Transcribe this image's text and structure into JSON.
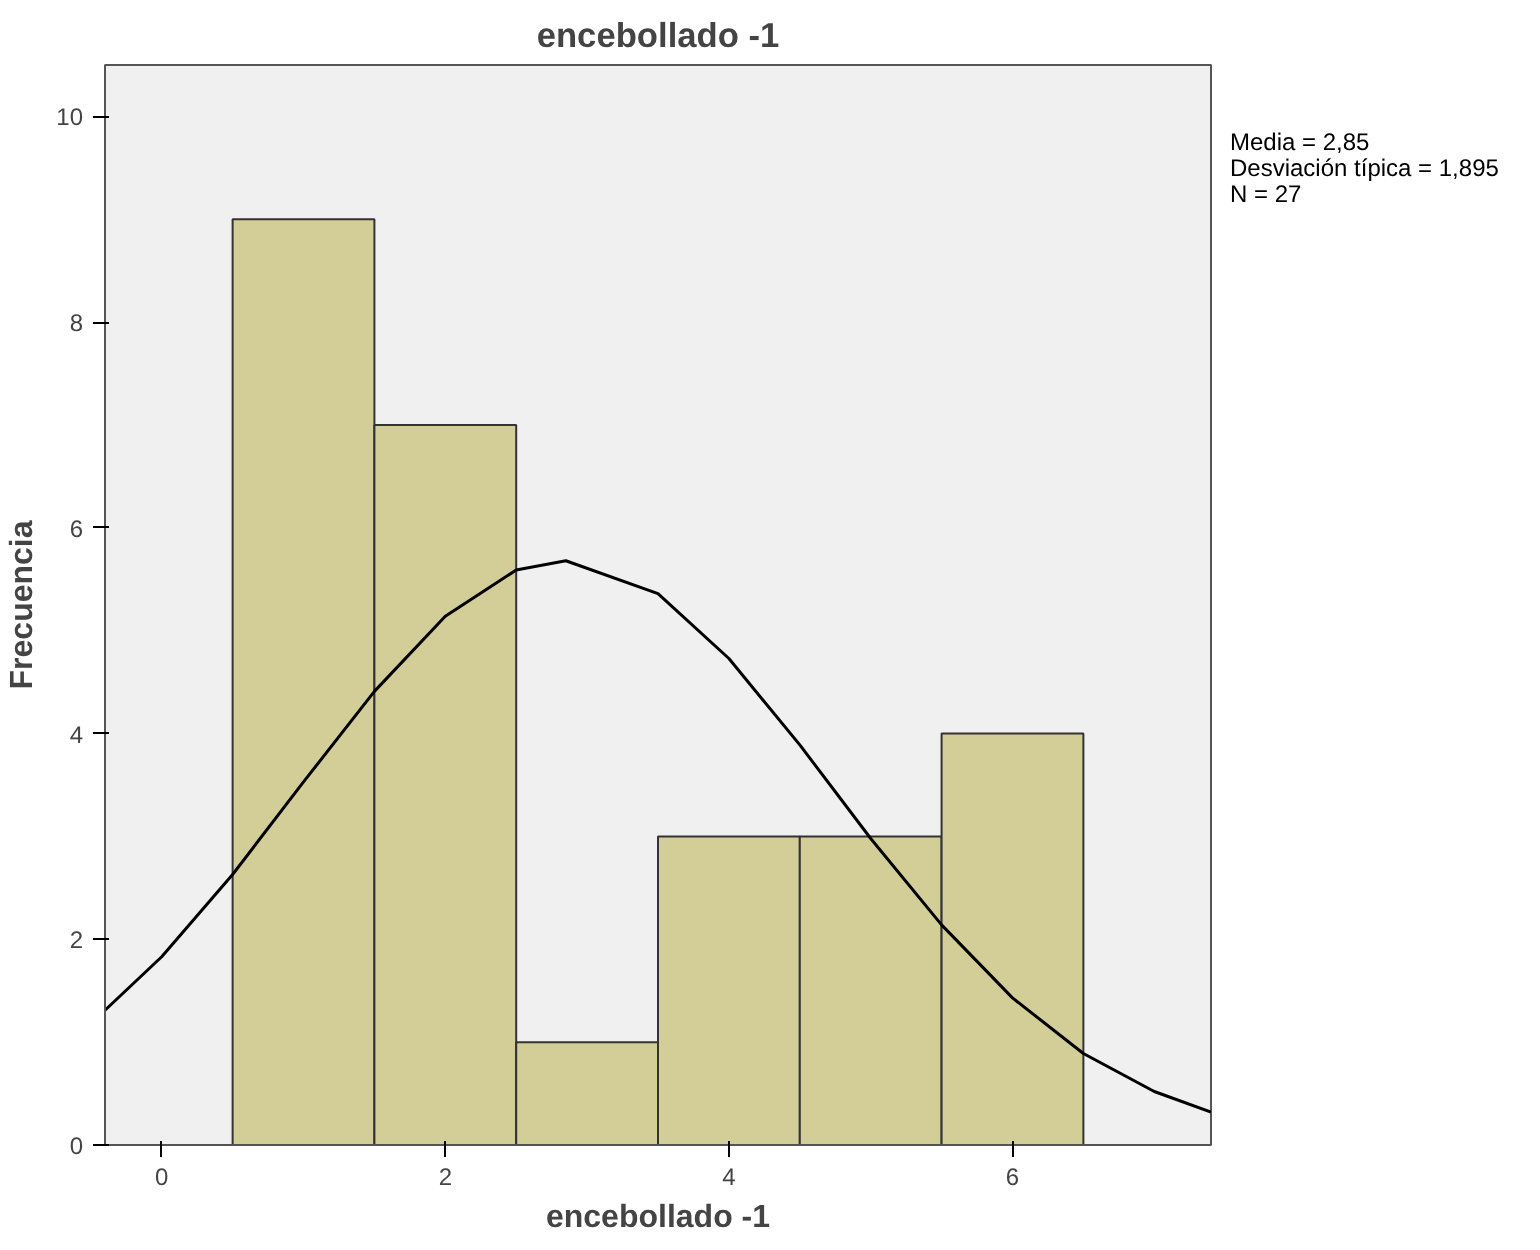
{
  "chart_data": {
    "type": "histogram",
    "title": "encebollado -1",
    "xlabel": "encebollado -1",
    "ylabel": "Frecuencia",
    "bins": [
      0.5,
      1.5,
      2.5,
      3.5,
      4.5,
      5.5,
      6.5
    ],
    "values": [
      9,
      7,
      1,
      3,
      3,
      4
    ],
    "color": "#d3ce97",
    "series": [
      {
        "type": "line",
        "color": "#000000",
        "x": [
          -0.4,
          0,
          0.5,
          1,
          1.5,
          2,
          2.5,
          2.85,
          3.5,
          4,
          4.5,
          5,
          5.5,
          6,
          6.5,
          7,
          7.4
        ],
        "values": [
          1.31,
          1.83,
          2.63,
          3.53,
          4.41,
          5.14,
          5.59,
          5.68,
          5.36,
          4.73,
          3.89,
          2.98,
          2.14,
          1.43,
          0.89,
          0.52,
          0.32
        ]
      }
    ],
    "xlim": [
      -0.4,
      7.4
    ],
    "ylim": [
      0,
      10.5
    ],
    "xticks": [
      0,
      2,
      4,
      6
    ],
    "yticks": [
      0,
      2,
      4,
      6,
      8,
      10
    ],
    "grid": false,
    "annotations": [
      "Media = 2,85",
      "Desviación típica = 1,895",
      "N = 27"
    ]
  }
}
